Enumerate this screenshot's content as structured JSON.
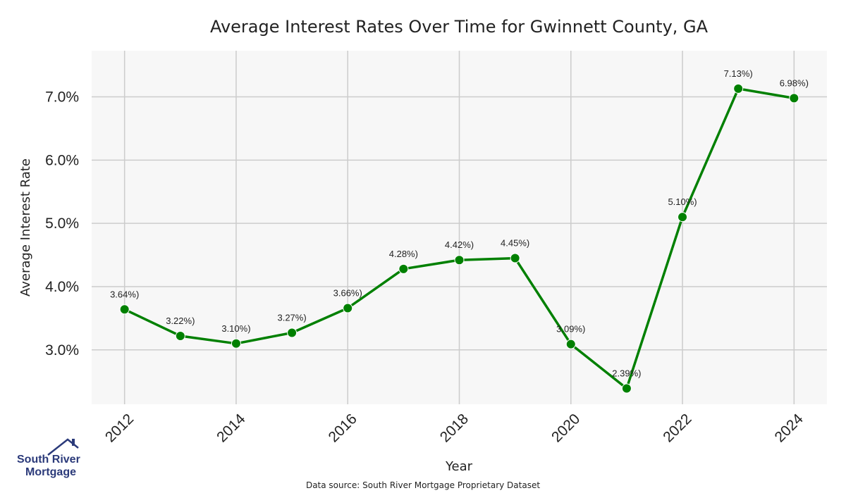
{
  "chart_data": {
    "type": "line",
    "title": "Average Interest Rates Over Time for Gwinnett County, GA",
    "xlabel": "Year",
    "ylabel": "Average Interest Rate",
    "x": [
      2012,
      2013,
      2014,
      2015,
      2016,
      2017,
      2018,
      2019,
      2020,
      2021,
      2022,
      2023,
      2024
    ],
    "series": [
      {
        "values": [
          3.64,
          3.22,
          3.1,
          3.27,
          3.66,
          4.28,
          4.42,
          4.45,
          3.09,
          2.39,
          5.1,
          7.13,
          6.98
        ],
        "color": "#008000"
      }
    ],
    "data_labels": [
      "3.64%)",
      "3.22%)",
      "3.10%)",
      "3.27%)",
      "3.66%)",
      "4.28%)",
      "4.42%)",
      "4.45%)",
      "3.09%)",
      "2.39%)",
      "5.10%)",
      "7.13%)",
      "6.98%)"
    ],
    "x_ticks": [
      2012,
      2014,
      2016,
      2018,
      2020,
      2022,
      2024
    ],
    "x_tick_labels": [
      "2012",
      "2014",
      "2016",
      "2018",
      "2020",
      "2022",
      "2024"
    ],
    "y_ticks": [
      3.0,
      4.0,
      5.0,
      6.0,
      7.0
    ],
    "y_tick_labels": [
      "3.0%",
      "4.0%",
      "5.0%",
      "6.0%",
      "7.0%"
    ],
    "xlim": [
      2011.41,
      2024.59
    ],
    "ylim": [
      2.14,
      7.73
    ],
    "grid": true,
    "plot_background": "#f7f7f7",
    "grid_color": "#cccccc"
  },
  "source_note": "Data source: South River Mortgage Proprietary Dataset",
  "logo": {
    "line1": "South River",
    "line2": "Mortgage",
    "color": "#2b3a7a",
    "icon": "house-roof-icon"
  }
}
